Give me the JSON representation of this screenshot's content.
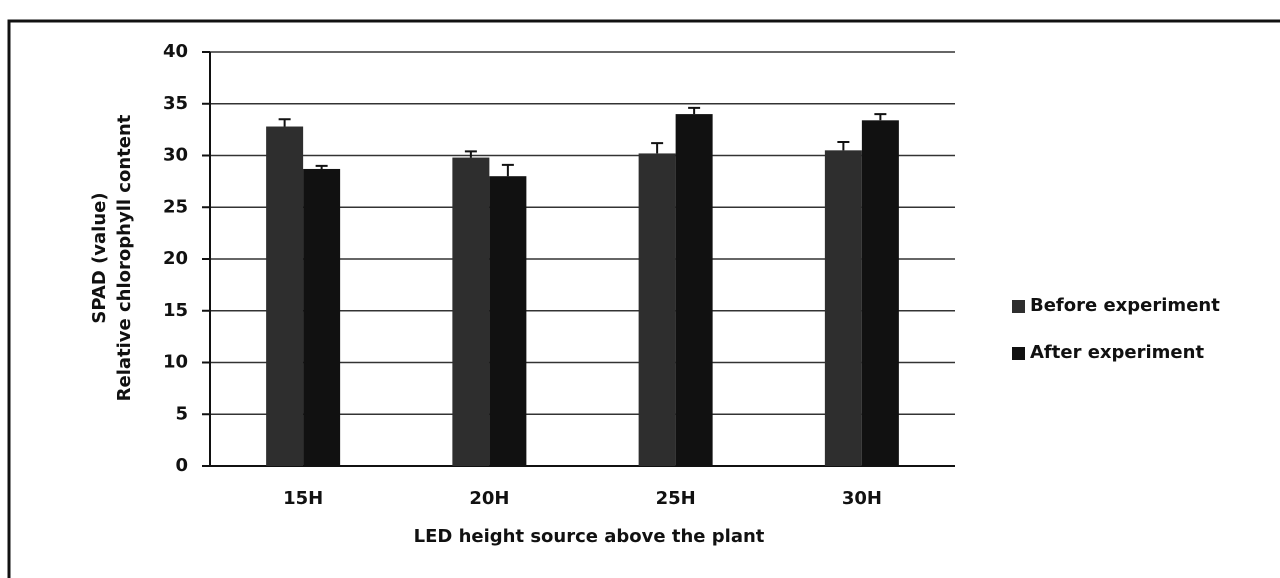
{
  "chart_data": {
    "type": "bar",
    "categories": [
      "15H",
      "20H",
      "25H",
      "30H"
    ],
    "series": [
      {
        "name": "Before experiment",
        "color": "#2e2e2e",
        "values": [
          32.8,
          29.8,
          30.2,
          30.5
        ],
        "errors": [
          0.7,
          0.6,
          1.0,
          0.8
        ]
      },
      {
        "name": "After experiment",
        "color": "#111111",
        "values": [
          28.7,
          28.0,
          34.0,
          33.4
        ],
        "errors": [
          0.3,
          1.1,
          0.6,
          0.6
        ]
      }
    ],
    "ylabel": [
      "SPAD (value)",
      "Relative chlorophyll content"
    ],
    "xlabel": "LED height source above the plant",
    "ylim": [
      0,
      40
    ],
    "yticks": [
      0,
      5,
      10,
      15,
      20,
      25,
      30,
      35,
      40
    ],
    "grid": true,
    "legend": "right"
  }
}
